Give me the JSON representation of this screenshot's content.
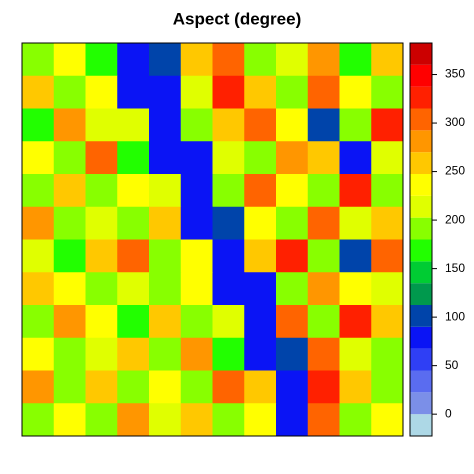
{
  "chart_data": {
    "type": "raster",
    "title": "Aspect (degree)",
    "grid": [
      [
        200,
        240,
        170,
        80,
        90,
        260,
        300,
        190,
        220,
        280,
        170,
        250
      ],
      [
        260,
        180,
        230,
        70,
        85,
        210,
        330,
        250,
        180,
        300,
        240,
        200
      ],
      [
        170,
        280,
        210,
        220,
        75,
        190,
        250,
        310,
        230,
        90,
        200,
        330
      ],
      [
        230,
        190,
        300,
        170,
        80,
        70,
        220,
        180,
        290,
        260,
        80,
        220
      ],
      [
        190,
        250,
        180,
        240,
        210,
        85,
        200,
        300,
        240,
        190,
        320,
        180
      ],
      [
        280,
        200,
        220,
        190,
        260,
        75,
        90,
        230,
        180,
        310,
        210,
        260
      ],
      [
        210,
        170,
        260,
        300,
        200,
        230,
        80,
        250,
        320,
        200,
        90,
        300
      ],
      [
        250,
        230,
        190,
        210,
        180,
        240,
        70,
        85,
        200,
        280,
        240,
        210
      ],
      [
        180,
        290,
        240,
        170,
        250,
        200,
        220,
        75,
        300,
        190,
        330,
        250
      ],
      [
        230,
        200,
        210,
        260,
        190,
        280,
        170,
        80,
        90,
        310,
        220,
        200
      ],
      [
        270,
        180,
        250,
        200,
        230,
        190,
        300,
        250,
        75,
        320,
        260,
        180
      ],
      [
        200,
        240,
        190,
        280,
        210,
        260,
        180,
        230,
        70,
        300,
        200,
        240
      ]
    ],
    "legend": {
      "bins": [
        -22.5,
        0,
        22.5,
        45,
        67.5,
        90,
        112.5,
        135,
        157.5,
        180,
        202.5,
        225,
        247.5,
        270,
        292.5,
        315,
        337.5,
        360,
        382.5
      ],
      "colors": [
        "#add8e6",
        "#7b8fe8",
        "#5a6cf0",
        "#2f3ff5",
        "#0a14f5",
        "#0044aa",
        "#00994d",
        "#00cc33",
        "#22ff00",
        "#88ff00",
        "#e0ff00",
        "#ffff00",
        "#ffc800",
        "#ff9600",
        "#ff6400",
        "#ff2000",
        "#ff0000",
        "#cc0000"
      ],
      "ticks": [
        0,
        50,
        100,
        150,
        200,
        250,
        300,
        350
      ]
    }
  }
}
